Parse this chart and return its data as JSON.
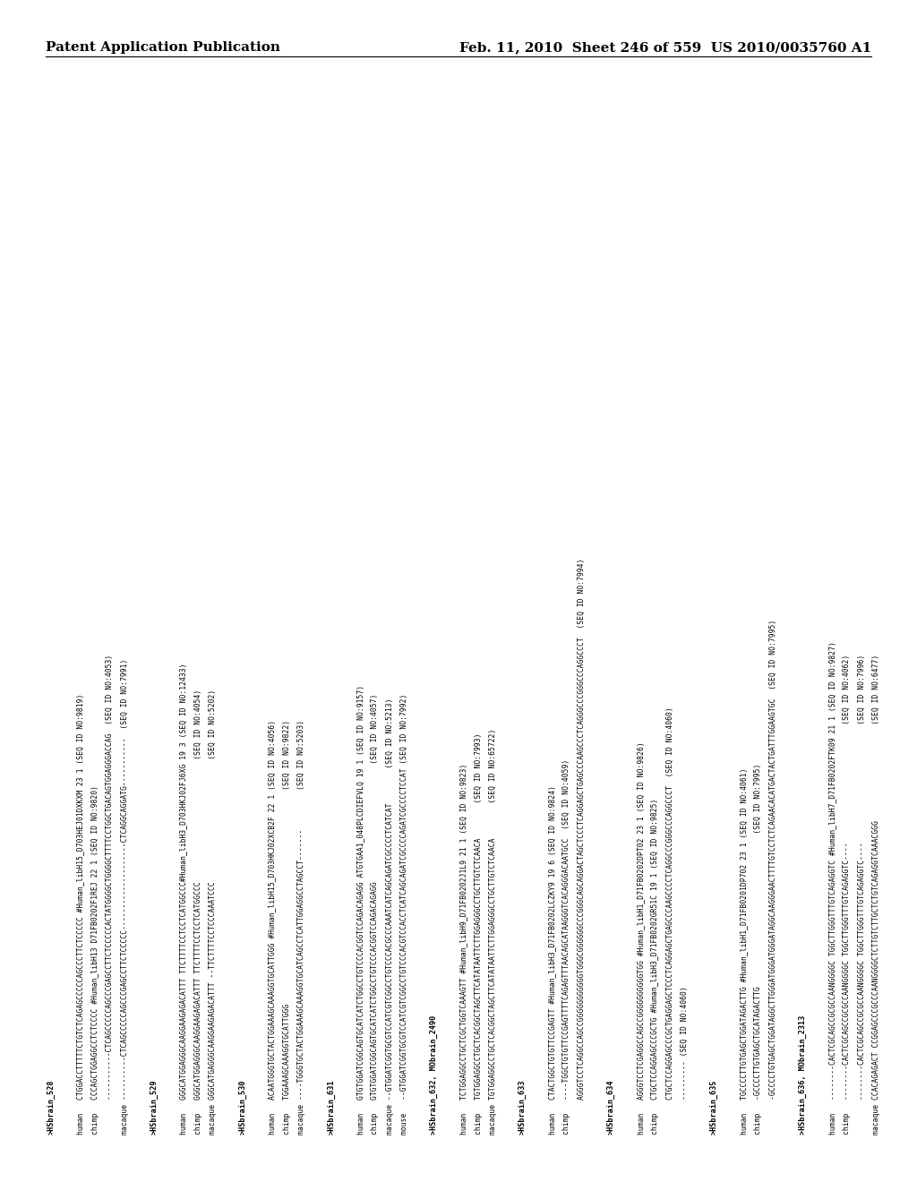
{
  "header_left": "Patent Application Publication",
  "header_right": "Feb. 11, 2010  Sheet 246 of 559  US 2010/0035760 A1",
  "background_color": "#ffffff",
  "text_color": "#000000",
  "header_font_size": 11,
  "seq_font_size": 5.8,
  "lines": [
    ">HSbrain_528",
    "",
    "human   CTGGACCTTTTTCTGTCTCAGAGCCCCCAGCCCTTCTCCCCC #Human_libH15_D703HEJ01DXKXM 23 1 (SEQ ID NO:9819)",
    "chimp   CCCAGCTGGAGGCCTCTCCCC #Human_libH13 D71FB0202F1REJ 22 1 (SEQ ID NO:9820)",
    "        -----------CTCAGCCCCCAGCCCGAGCCTTCTCCCCCACTATGGGGCTGGGGCTTTTCCTGGCTGACAGTGGAGGGACCAG  (SEQ ID NO:4053)",
    "macaque ----------CTCAGCCCCCAGCCCGAGCCTTCTCCCCC--------------------CTCAGGCAGGATG-----------  (SEQ ID NO:7991)",
    "",
    ">HSbrain_529",
    "",
    "human   GGGCATGGAGGGCAAGGAAGAGACATTT TTCTTTTCCTCCTCATGGCCC#Human_libH3_D703HKJ02FJ6XG 19 3 (SEQ ID NO:12433)",
    "chimp   GGGCATGGAGGGCAAGGAAGAGACATTT TTCTTTTCCTCCTCATGGCCC                            (SEQ ID NO:4054)",
    "macaque GGGCATGAGGGCAAGGAAGAGACATTT --TTCTTTTCCTCCCAAATCCC                            (SEQ ID NO:5202)",
    "",
    ">HSbrain_530",
    "",
    "human   ACAATGGGTGCTACTGGAAAGCAAAGGTGCATTGGG #Human_libH15_D703HKJ02XCB2F 22 1 (SEQ ID NO:4056)",
    "chimp   TGGAAAGCAAAGGTGCATTGGG                                                 (SEQ ID NO:9822)",
    "macaque ----TGGGTGCTACTGGAAAGCAAAGGTGCATCAGCCTCATTGGAGGCCTAGCCT-------         (SEQ ID NO:5203)",
    "",
    ">HSbrain_631",
    "",
    "human   GTGTGGATCGGCAGTGCATCATCTGGCCTGTCCCACGGTCCAGACAGAGG ATGTGAA1_048PLCDIEFVLQ 19 1 (SEQ ID NO:9157)",
    "chimp   GTGTGGATCGGCAGTGCATCATCTGGCCTGTCCCACGGTCCAGACAGAGG                           (SEQ ID NO:4057)",
    "macaque --GTGGATCGGTGCGTCCATCGTCGGCCTGTCCCACGCCCAAATCATCAGCAGATCGCCCCTCATCAT        (SEQ ID NO:5213)",
    "mouse   --GTGGATCGGTGCGTCCATCGTCGGCCTGTCCCACGTCCACCTCATCAGCAGATCGCCCCAGATCGCCCCTCCAT (SEQ ID NO:7992)",
    "",
    ">HSbrain_632, MObrain_2490",
    "",
    "human   TCTGGAGGCCTGCTCGCTGGTCAAAGTT #Human_libH9_D71FB0202J1L9 21 1 (SEQ ID NO:9823)",
    "chimp   TGTGGAGGCCTGCTCACGGCTAGCTTCATATAATTCTTGGAGGGCCTGCTTGTCTCAACA        (SEQ ID NO:7993)",
    "macaque TGTGGAGGCCTGCTCACGGCTAGCTTCATATAATTCTTGGAGGGCCTGCTTGTCTCAACA        (SEQ ID NO:65722)",
    "",
    ">HSbrain_633",
    "",
    "human   CTACTGGCTGTGTTCCGAGTT #Human_libH3_D71FB0202LCZKY9 19 6 (SEQ ID NO:9824)",
    "chimp   ----TGGCTGTGTTCCGAGTTTTCAGAGTTTAACAGCATAAGGGTCACAGGGACAATGCC  (SEQ ID NO:4059)",
    "        AGGGTCCTCAGGCCAGCCGGGGGGGGGGGTGGGCGGGGGGCCCGGGCAGCAGGACTAGCTCCCTCAGGAGCTGAGCCCAAGCCCTCAGGGCCCGGGCCCAGGCCCT  (SEQ ID NO:7994)",
    "",
    ">HSbrain_634",
    "",
    "human   AGGGTCCTCGAGGCCAGCCGGGGGGGGGGTGG #Human_libH1_D71FB0202DPT02 23 1 (SEQ ID NO:9826)",
    "chimp   CTGCTCCAGGAGCCCGCTG #Human_libH3_D71FB0202GR51C 19 1 (SEQ ID NO:9825)",
    "        CTGCTCCAGGAGCCCGCTGAGGAGCTCCCTCAGGAGCTGAGCCCAAGCCCCTCAGGCCCGGGCCCAGGCCCT  (SEQ ID NO:4060)",
    "        --------- (SEQ ID NO:4060)",
    "",
    ">HSbrain_635",
    "",
    "human   TGCCCCTTGTGAGCTGGATAGACTTG #Human_libH1_D71FB0201DP702 23 1 (SEQ ID NO:4061)",
    "chimp   -GCCCCTTGTGAGCTGCATAGACTTG                                   (SEQ ID NO:7995)",
    "        -GCCCCTGTGAGCTGGATAGGCTTGGGATGGGATGGGATAGGCAAGGGAACTTTTGTCCTCTCAGAACACATGACTACTGATTTGGAAGTGC  (SEQ ID NO:7995)",
    "",
    ">HSbrain_636, MObrain_2313",
    "",
    "human   --------CACTCGCAGCCGCGCCAANGGGGC TGGCTTGGGTTTGTCAGAGGTC #Human_libH7_D71FB0202FTK09 21 1 (SEQ ID NO:9827)",
    "chimp   --------CACTCGCAGCCGCGCCAANGGGGC TGGCTTGGGTTTGTCAGAGGTC----                           (SEQ ID NO:4062)",
    "        --------CACTCGCAGCCGCGCCAANGGGGC TGGCTTGGGTTTGTCAGAGGTC----                           (SEQ ID NO:7996)",
    "macaque CCACAGAGACT CCGGAGCCCGCCCAANGGGGCTCTTGTCTTGCTCTGTCAGAGGTCAAACGGG                      (SEQ ID NO:6477)"
  ]
}
